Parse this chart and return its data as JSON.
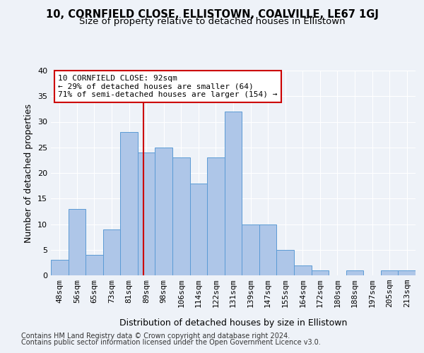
{
  "title": "10, CORNFIELD CLOSE, ELLISTOWN, COALVILLE, LE67 1GJ",
  "subtitle": "Size of property relative to detached houses in Ellistown",
  "xlabel": "Distribution of detached houses by size in Ellistown",
  "ylabel": "Number of detached properties",
  "categories": [
    "48sqm",
    "56sqm",
    "65sqm",
    "73sqm",
    "81sqm",
    "89sqm",
    "98sqm",
    "106sqm",
    "114sqm",
    "122sqm",
    "131sqm",
    "139sqm",
    "147sqm",
    "155sqm",
    "164sqm",
    "172sqm",
    "180sqm",
    "188sqm",
    "197sqm",
    "205sqm",
    "213sqm"
  ],
  "values": [
    3,
    13,
    4,
    9,
    28,
    24,
    25,
    23,
    18,
    23,
    32,
    10,
    10,
    5,
    2,
    1,
    0,
    1,
    0,
    1,
    1
  ],
  "bar_color": "#aec6e8",
  "bar_edge_color": "#5b9bd5",
  "annotation_text": "10 CORNFIELD CLOSE: 92sqm\n← 29% of detached houses are smaller (64)\n71% of semi-detached houses are larger (154) →",
  "annotation_box_color": "#ffffff",
  "annotation_box_edge": "#cc0000",
  "vline_color": "#cc0000",
  "ylim": [
    0,
    40
  ],
  "yticks": [
    0,
    5,
    10,
    15,
    20,
    25,
    30,
    35,
    40
  ],
  "footer1": "Contains HM Land Registry data © Crown copyright and database right 2024.",
  "footer2": "Contains public sector information licensed under the Open Government Licence v3.0.",
  "bg_color": "#eef2f8",
  "grid_color": "#ffffff",
  "title_fontsize": 10.5,
  "subtitle_fontsize": 9.5,
  "axis_label_fontsize": 9,
  "tick_fontsize": 8,
  "footer_fontsize": 7,
  "vline_x_index": 4.833
}
